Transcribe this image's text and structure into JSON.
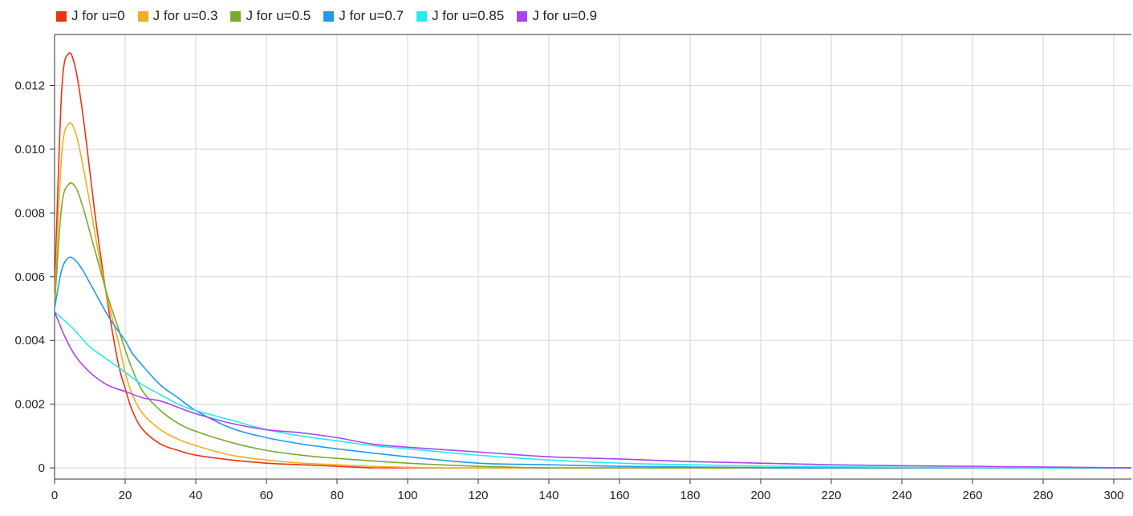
{
  "chart_data": {
    "type": "line",
    "title": "",
    "xlabel": "",
    "ylabel": "",
    "xlim": [
      0,
      305
    ],
    "ylim": [
      -0.00035,
      0.0136
    ],
    "xticks": [
      0,
      20,
      40,
      60,
      80,
      100,
      120,
      140,
      160,
      180,
      200,
      220,
      240,
      260,
      280,
      300
    ],
    "yticks": [
      0,
      0.002,
      0.004,
      0.006,
      0.008,
      0.01,
      0.012
    ],
    "ytick_labels": [
      "0",
      "0.002",
      "0.004",
      "0.006",
      "0.008",
      "0.010",
      "0.012"
    ],
    "grid": true,
    "legend_position": "top-left",
    "series": [
      {
        "name": "J for u=0",
        "color": "#ee3311",
        "x": [
          0,
          2,
          4,
          6,
          8,
          10,
          12,
          15,
          18,
          20,
          22,
          25,
          30,
          35,
          40,
          50,
          60,
          70,
          80,
          90
        ],
        "y": [
          0.0055,
          0.0118,
          0.013,
          0.0125,
          0.0111,
          0.0093,
          0.0075,
          0.0052,
          0.0033,
          0.0025,
          0.0018,
          0.0012,
          0.00075,
          0.00055,
          0.0004,
          0.00025,
          0.00015,
          0.0001,
          5e-05,
          0.0
        ]
      },
      {
        "name": "J for u=0.3",
        "color": "#efb020",
        "x": [
          0,
          2,
          4,
          6,
          8,
          10,
          12,
          15,
          18,
          20,
          22,
          25,
          30,
          35,
          40,
          50,
          60,
          70,
          80,
          90,
          100,
          110
        ],
        "y": [
          0.0052,
          0.0098,
          0.0108,
          0.0105,
          0.0095,
          0.0083,
          0.007,
          0.0053,
          0.004,
          0.003,
          0.0023,
          0.0017,
          0.0012,
          0.0009,
          0.0007,
          0.0004,
          0.00025,
          0.00015,
          0.0001,
          5e-05,
          2e-05,
          0.0
        ]
      },
      {
        "name": "J for u=0.5",
        "color": "#77aa33",
        "x": [
          0,
          2,
          4,
          6,
          8,
          10,
          12,
          15,
          18,
          20,
          22,
          25,
          30,
          35,
          40,
          50,
          60,
          70,
          80,
          100,
          120,
          140
        ],
        "y": [
          0.0051,
          0.0082,
          0.0089,
          0.0088,
          0.0082,
          0.0074,
          0.0066,
          0.0054,
          0.0044,
          0.0037,
          0.0031,
          0.0024,
          0.0018,
          0.0014,
          0.00115,
          0.0008,
          0.00055,
          0.0004,
          0.0003,
          0.00015,
          5e-05,
          0.0
        ]
      },
      {
        "name": "J for u=0.7",
        "color": "#2299ee",
        "x": [
          0,
          2,
          4,
          6,
          8,
          10,
          12,
          15,
          18,
          20,
          22,
          25,
          30,
          35,
          40,
          50,
          60,
          70,
          80,
          100,
          120,
          140,
          160,
          180,
          200,
          215
        ],
        "y": [
          0.005,
          0.0062,
          0.0066,
          0.0065,
          0.0062,
          0.0058,
          0.0054,
          0.0048,
          0.0043,
          0.004,
          0.0036,
          0.0032,
          0.0026,
          0.0022,
          0.0018,
          0.00125,
          0.00095,
          0.00075,
          0.0006,
          0.00035,
          0.00015,
          0.0001,
          5e-05,
          3e-05,
          1e-05,
          0.0
        ]
      },
      {
        "name": "J for u=0.85",
        "color": "#22eeee",
        "x": [
          0,
          5,
          10,
          15,
          20,
          25,
          30,
          35,
          40,
          50,
          60,
          70,
          80,
          90,
          100,
          120,
          140,
          160,
          180,
          200,
          220,
          240,
          260,
          285
        ],
        "y": [
          0.0049,
          0.0044,
          0.0038,
          0.0034,
          0.003,
          0.0026,
          0.0023,
          0.002,
          0.0018,
          0.0015,
          0.0012,
          0.001,
          0.00085,
          0.0007,
          0.0006,
          0.0004,
          0.00025,
          0.00015,
          0.0001,
          6e-05,
          4e-05,
          2e-05,
          1e-05,
          0.0
        ]
      },
      {
        "name": "J for u=0.9",
        "color": "#aa44ee",
        "x": [
          0,
          3,
          6,
          10,
          15,
          20,
          25,
          30,
          35,
          40,
          50,
          60,
          70,
          80,
          90,
          100,
          120,
          140,
          160,
          180,
          200,
          220,
          240,
          260,
          280,
          305
        ],
        "y": [
          0.0049,
          0.0041,
          0.0035,
          0.003,
          0.0026,
          0.0024,
          0.0022,
          0.0021,
          0.0019,
          0.0017,
          0.0014,
          0.0012,
          0.0011,
          0.00095,
          0.00075,
          0.00065,
          0.0005,
          0.00035,
          0.00028,
          0.0002,
          0.00015,
          0.0001,
          7e-05,
          5e-05,
          3e-05,
          0.0
        ]
      }
    ]
  }
}
